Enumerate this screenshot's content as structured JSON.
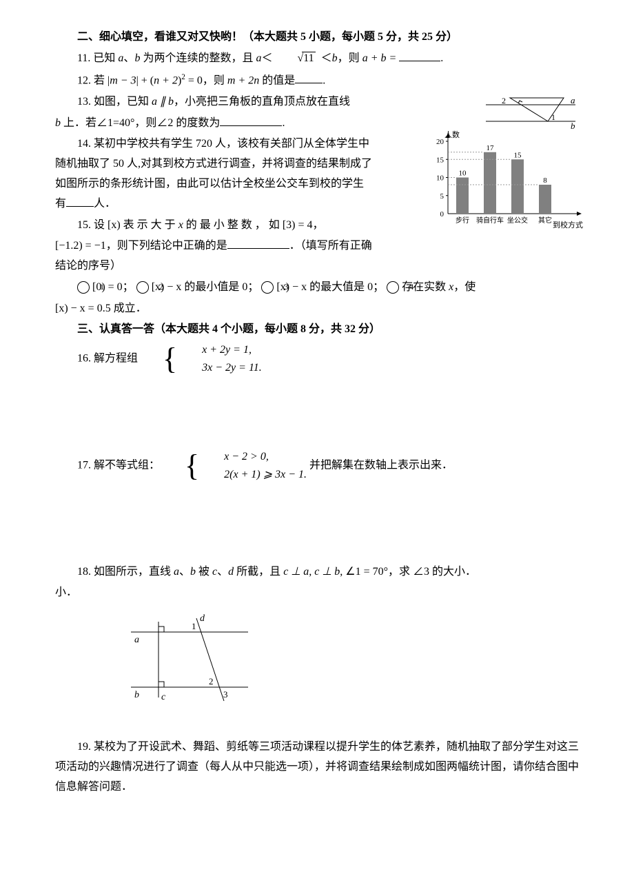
{
  "section2": {
    "title": "二、细心填空，看谁又对又快哟！（本大题共 5 小题，每小题 5 分，共 25 分）",
    "q11": {
      "num": "11.",
      "pre": "已知 ",
      "a": "a",
      "b": "b",
      "t1": "、",
      "t2": " 为两个连续的整数，且 ",
      "lt1": "＜",
      "rad": "11",
      "lt2": "＜",
      "t3": "，则 ",
      "expr": "a + b =",
      "tail": "."
    },
    "q12": {
      "num": "12.",
      "pre": "若 ",
      "abs_l": "|",
      "abs_in": "m − 3",
      "abs_r": "|",
      "plus": " + (",
      "n2": "n + 2",
      "sq": ")",
      "pow": "2",
      "eq0": " = 0",
      "t1": "，则 ",
      "expr": "m + 2n",
      "t2": " 的值是",
      "tail": "."
    },
    "q13": {
      "num": "13.",
      "line1a": "如图，已知 ",
      "apar": "a ∥ b",
      "line1b": "，小亮把三角板的直角顶点放在直线",
      "line2a": "b",
      "line2b": " 上．若∠1=40°，则∠2 的度数为",
      "tail": ".",
      "fig": {
        "label_a": "a",
        "label_b": "b",
        "label_1": "1",
        "label_2": "2"
      }
    },
    "q14": {
      "num": "14.",
      "t1": "某初中学校共有学生 720 人，该校有关部门从全体学生中随机抽取了 50 人,对其到校方式进行调查，并将调查的结果制成了如图所示的条形统计图，由此可以估计全校坐公交车到校的学生有",
      "t2": "人．",
      "chart": {
        "ylabel": "人数",
        "xlabel": "到校方式",
        "ytick": [
          0,
          5,
          10,
          15,
          20
        ],
        "categories": [
          "步行",
          "骑自行车",
          "坐公交",
          "其它"
        ],
        "values": [
          10,
          17,
          15,
          8
        ],
        "bar_color": "#808080",
        "axis_color": "#000000",
        "label_fontsize": 11
      }
    },
    "q15": {
      "num": "15.",
      "t1": "设 ",
      "bx": "[x)",
      "t2": " 表 示 大 于 ",
      "x": "x",
      "t3": " 的 最 小 整 数 ，  如 ",
      "e1": "[3) = 4",
      "t4": "，",
      "e2": "[−1.2) = −1",
      "t5": "，则下列结论中正确的是",
      "t6": "．（填写所有正确结论的序号）",
      "opts": {
        "o1": "[0) = 0",
        "o2a": "[x) − x",
        "o2b": " 的最小值是 0；",
        "o3a": "[x) − x",
        "o3b": " 的最大值是 0；",
        "o4a": "存在实数 ",
        "o4x": "x",
        "o4b": "，使",
        "o5": "[x) − x = 0.5",
        "o5b": " 成立．"
      }
    }
  },
  "section3": {
    "title": "三、认真答一答（本大题共 4 个小题，每小题 8 分，共 32 分）",
    "q16": {
      "num": "16.",
      "pre": "解方程组 ",
      "l1": "x + 2y = 1,",
      "l2": "3x − 2y = 11."
    },
    "q17": {
      "num": "17.",
      "pre": "解不等式组：",
      "l1": "x − 2 > 0,",
      "l2": "2(x + 1) ⩾ 3x − 1.",
      "tail": " 并把解集在数轴上表示出来．"
    },
    "q18": {
      "num": "18.",
      "t1": "如图所示，直线 ",
      "a": "a",
      "b": "b",
      "c": "c",
      "d": "d",
      "t2": "、",
      "t3": " 被 ",
      "t4": "、",
      "t5": " 所截，且 ",
      "perp1": "c ⊥ a, c ⊥ b, ",
      "ang": "∠1 = 70°",
      "t6": "，求 ∠3 的大小．",
      "fig": {
        "a": "a",
        "b": "b",
        "c": "c",
        "d": "d",
        "l1": "1",
        "l2": "2",
        "l3": "3"
      }
    },
    "q19": {
      "num": "19.",
      "t": "某校为了开设武术、舞蹈、剪纸等三项活动课程以提升学生的体艺素养，随机抽取了部分学生对这三项活动的兴趣情况进行了调查（每人从中只能选一项），并将调查结果绘制成如图两幅统计图，请你结合图中信息解答问题．"
    }
  }
}
